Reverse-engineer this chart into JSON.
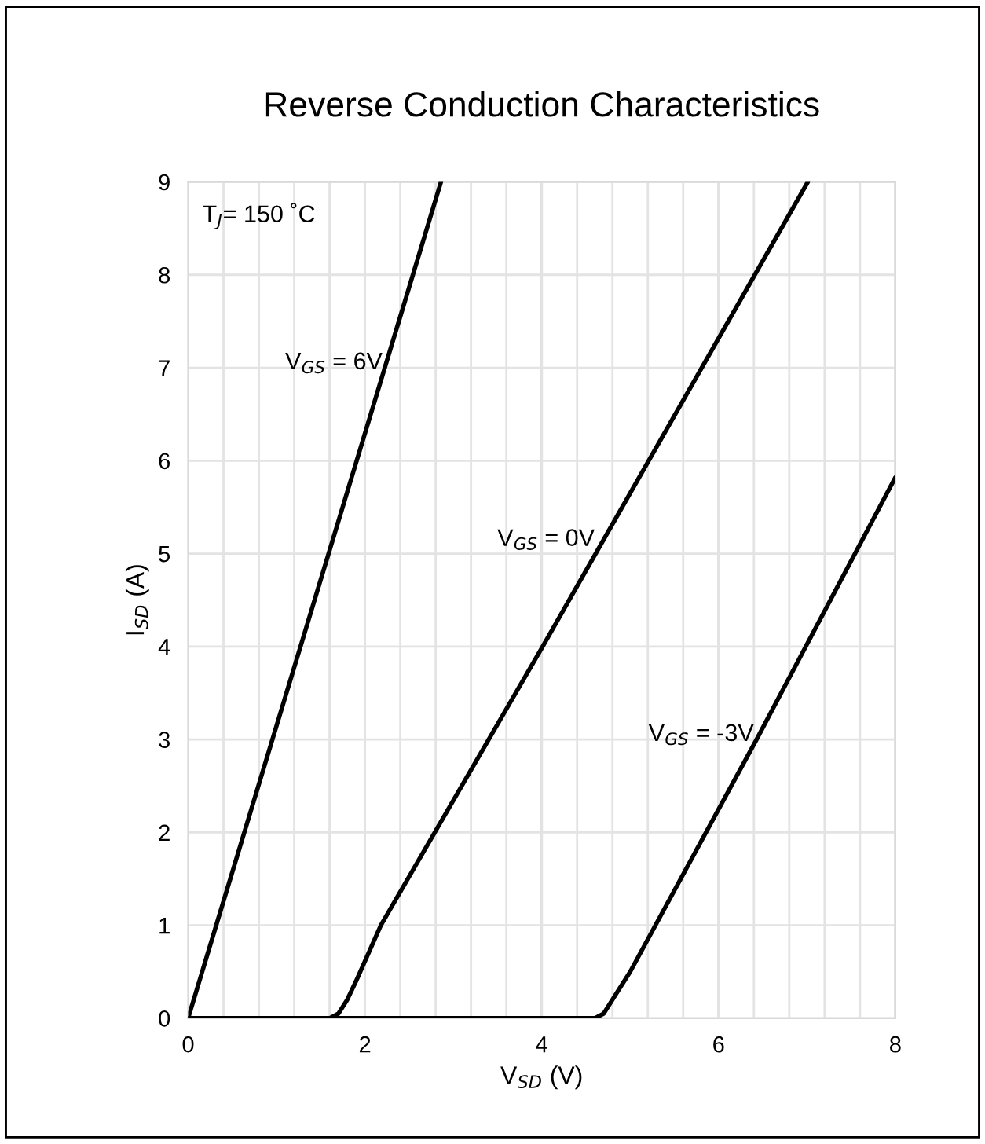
{
  "chart_data": {
    "type": "line",
    "title": "Reverse Conduction Characteristics",
    "xlabel": "V$_{SD}$ (V)",
    "ylabel": "I$_{SD}$ (A)",
    "series": [
      {
        "color": "#000000",
        "x": [
          0,
          2.86
        ],
        "values": [
          0,
          9
        ]
      },
      {
        "color": "#000000",
        "x": [
          0,
          1.6,
          1.7,
          1.8,
          1.9,
          2.18,
          4.01,
          7.01
        ],
        "values": [
          0,
          0,
          0.05,
          0.2,
          0.4,
          1,
          4,
          9
        ]
      },
      {
        "color": "#000000",
        "x": [
          0,
          4.6,
          4.7,
          4.8,
          5.0,
          6.43,
          8
        ],
        "values": [
          0,
          0,
          0.05,
          0.2,
          0.5,
          3,
          5.82
        ]
      }
    ],
    "annotations": [
      "T$_{J}$= 150 ˚C",
      {
        "text": "V$_{GS}$ = 6V",
        "x": 2.2,
        "y": 7.05
      },
      {
        "text": "V$_{GS}$ = 0V",
        "x": 4.6,
        "y": 5.15
      },
      {
        "text": "V$_{GS}$ = -3V",
        "x": 6.4,
        "y": 3.05
      }
    ],
    "xlim": [
      0,
      8
    ],
    "ylim": [
      0,
      9
    ],
    "xticks": [
      0,
      {
        "value": 0.4,
        "label": null
      },
      {
        "value": 0.8,
        "label": null
      },
      {
        "value": 1.2,
        "label": null
      },
      {
        "value": 1.6,
        "label": null
      },
      2,
      {
        "value": 2.4,
        "label": null
      },
      {
        "value": 2.8,
        "label": null
      },
      {
        "value": 3.2,
        "label": null
      },
      {
        "value": 3.6,
        "label": null
      },
      4,
      {
        "value": 4.4,
        "label": null
      },
      {
        "value": 4.8,
        "label": null
      },
      {
        "value": 5.2,
        "label": null
      },
      {
        "value": 5.6,
        "label": null
      },
      6,
      {
        "value": 6.4,
        "label": null
      },
      {
        "value": 6.8,
        "label": null
      },
      {
        "value": 7.2,
        "label": null
      },
      {
        "value": 7.6,
        "label": null
      },
      8
    ],
    "yticks": [
      0,
      1,
      2,
      3,
      4,
      5,
      6,
      7,
      8,
      9
    ],
    "grid": true,
    "line_style": "solid"
  }
}
